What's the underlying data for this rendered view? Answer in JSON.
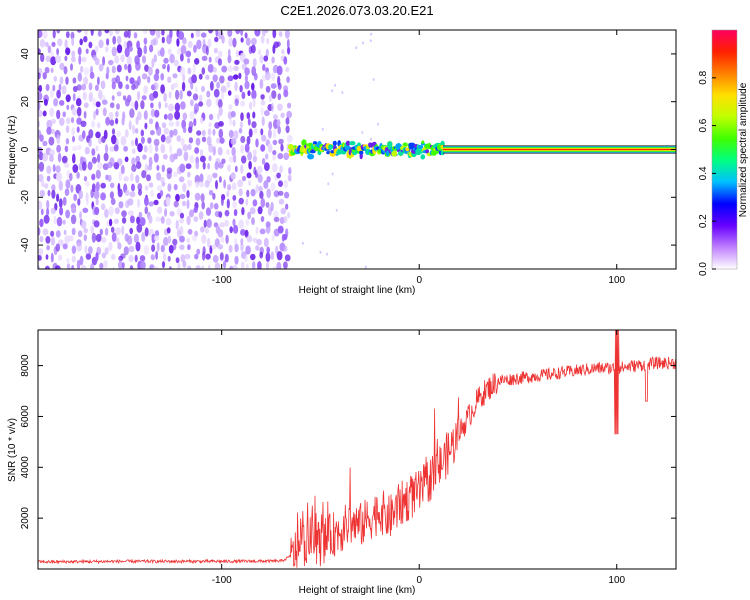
{
  "title": "C2E1.2026.073.03.20.E21",
  "chart_data": [
    {
      "type": "heatmap",
      "name": "spectrogram",
      "xlabel": "Height of straight line (km)",
      "ylabel": "Frequency (Hz)",
      "xlim": [
        -193,
        130
      ],
      "ylim": [
        -50,
        50
      ],
      "xticks": [
        -100,
        0,
        100
      ],
      "xtick_labels": [
        "-100",
        "0",
        "100"
      ],
      "yticks": [
        -40,
        -20,
        0,
        20,
        40
      ],
      "ytick_labels": [
        "-40",
        "-20",
        "0",
        "20",
        "40"
      ],
      "noise_region_x": [
        -193,
        -65
      ],
      "tone_start_x": -65,
      "steady_tone_start_x": 12,
      "tone_frequency_hz": 0,
      "colorbar": {
        "label": "Normalized spectral amplitude",
        "range": [
          0,
          1
        ],
        "ticks": [
          0.0,
          0.2,
          0.4,
          0.6,
          0.8
        ],
        "tick_labels": [
          "0.0",
          "0.2",
          "0.4",
          "0.6",
          "0.8"
        ],
        "colors": [
          "#ffffff",
          "#c080ff",
          "#6600ff",
          "#0000ff",
          "#00c0ff",
          "#00ff80",
          "#40ff00",
          "#c0ff00",
          "#ffe000",
          "#ff8000",
          "#ff2000",
          "#ff0060"
        ]
      }
    },
    {
      "type": "line",
      "name": "snr",
      "xlabel": "Height of straight line (km)",
      "ylabel": "SNR (10 * v/v)",
      "xlim": [
        -193,
        130
      ],
      "ylim": [
        0,
        9400
      ],
      "xticks": [
        -100,
        0,
        100
      ],
      "xtick_labels": [
        "-100",
        "0",
        "100"
      ],
      "yticks": [
        2000,
        4000,
        6000,
        8000
      ],
      "ytick_labels": [
        "2000",
        "4000",
        "6000",
        "8000"
      ],
      "color": "#ee3333",
      "series": [
        {
          "name": "SNR",
          "x": [
            -193,
            -150,
            -100,
            -70,
            -65,
            -60,
            -55,
            -50,
            -45,
            -40,
            -35,
            -30,
            -25,
            -20,
            -15,
            -10,
            -5,
            0,
            5,
            10,
            15,
            20,
            25,
            30,
            35,
            40,
            50,
            60,
            70,
            80,
            90,
            100,
            110,
            120,
            130
          ],
          "y": [
            280,
            300,
            300,
            310,
            500,
            900,
            1200,
            1000,
            1300,
            1500,
            1800,
            1700,
            2000,
            2300,
            2000,
            2500,
            2800,
            3000,
            3500,
            4000,
            4600,
            5300,
            6000,
            6700,
            7100,
            7400,
            7500,
            7600,
            7700,
            7800,
            7900,
            7900,
            8000,
            8100,
            8100
          ]
        }
      ]
    }
  ]
}
